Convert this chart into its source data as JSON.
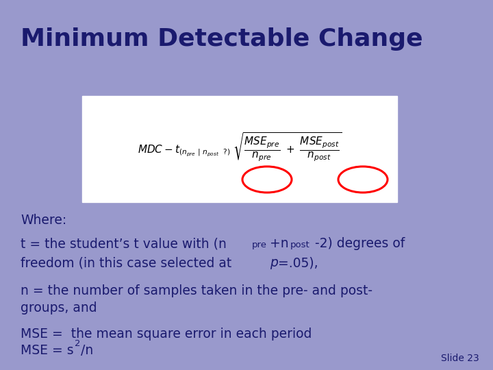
{
  "title": "Minimum Detectable Change",
  "background_color": "#9999cc",
  "title_color": "#1a1a6e",
  "text_color": "#1a1a6e",
  "slide_number": "Slide 23",
  "formula_box_color": "#ffffff",
  "where_text": "Where:",
  "line1a": "t = the student’s t value with (n",
  "line1b": "pre",
  "line1c": "+n",
  "line1d": "post",
  "line1e": "-2) degrees of",
  "line2": "freedom (in this case selected at ",
  "line2p": "p",
  "line2end": "=.05),",
  "line3": "n = the number of samples taken in the pre- and post-",
  "line4": "groups, and",
  "line5": "MSE =  the mean square error in each period",
  "line6a": "MSE = s",
  "line6b": "2",
  "line6c": "/n"
}
